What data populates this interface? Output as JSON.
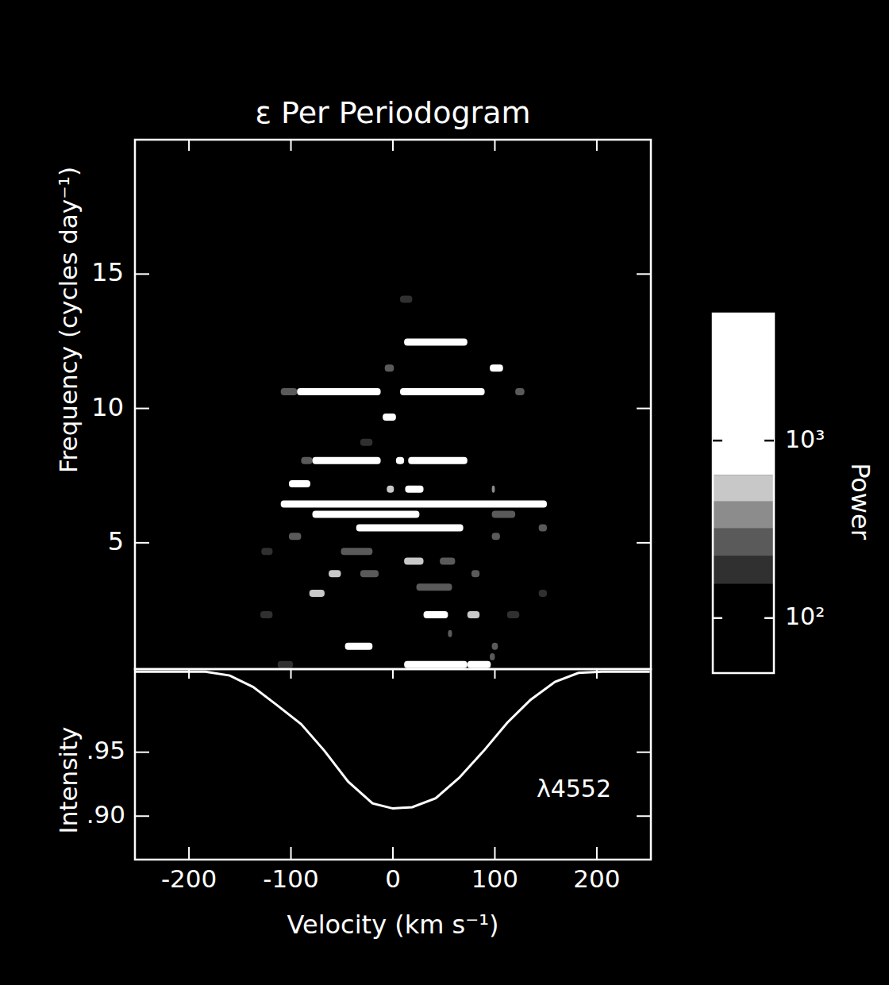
{
  "chart_data": [
    {
      "type": "heatmap",
      "title": "ε Per Periodogram",
      "ylabel": "Frequency (cycles day⁻¹)",
      "xlim": [
        -253,
        253
      ],
      "xticks": [
        -200,
        -100,
        0,
        100,
        200
      ],
      "ylim": [
        0.3,
        20
      ],
      "yticks": [
        5,
        10,
        15
      ],
      "tick_labels": "y",
      "cells": [
        [
          14.06,
          7,
          19,
          200
        ],
        [
          12.47,
          11,
          73,
          800
        ],
        [
          11.5,
          -8,
          1,
          250
        ],
        [
          11.5,
          95,
          108,
          1500
        ],
        [
          10.62,
          -110,
          -94,
          300
        ],
        [
          10.62,
          -94,
          -12,
          1500
        ],
        [
          10.62,
          7,
          90,
          2000
        ],
        [
          10.62,
          120,
          129,
          250
        ],
        [
          9.68,
          -10,
          3,
          1200
        ],
        [
          8.74,
          -32,
          -20,
          200
        ],
        [
          8.06,
          -90,
          -79,
          300
        ],
        [
          8.06,
          -79,
          -12,
          1500
        ],
        [
          8.06,
          3,
          11,
          1000
        ],
        [
          8.06,
          15,
          73,
          1500
        ],
        [
          7.2,
          -102,
          -81,
          800
        ],
        [
          7.0,
          -6,
          1,
          600
        ],
        [
          7.0,
          12,
          30,
          1200
        ],
        [
          7.0,
          97,
          100,
          400
        ],
        [
          6.44,
          -110,
          151,
          5000
        ],
        [
          6.06,
          -79,
          26,
          700
        ],
        [
          6.06,
          97,
          120,
          250
        ],
        [
          5.56,
          -36,
          69,
          1200
        ],
        [
          5.56,
          143,
          151,
          250
        ],
        [
          5.24,
          -102,
          -90,
          250
        ],
        [
          5.24,
          97,
          105,
          250
        ],
        [
          4.68,
          -51,
          -20,
          300
        ],
        [
          4.68,
          -129,
          -118,
          200
        ],
        [
          4.32,
          11,
          30,
          600
        ],
        [
          4.32,
          46,
          61,
          250
        ],
        [
          3.85,
          -63,
          -51,
          600
        ],
        [
          3.85,
          -32,
          -14,
          250
        ],
        [
          3.85,
          77,
          85,
          250
        ],
        [
          3.35,
          23,
          58,
          300
        ],
        [
          3.12,
          -82,
          -67,
          500
        ],
        [
          3.12,
          143,
          151,
          200
        ],
        [
          2.32,
          30,
          54,
          900
        ],
        [
          2.32,
          73,
          85,
          500
        ],
        [
          2.32,
          -130,
          -118,
          200
        ],
        [
          2.32,
          112,
          124,
          200
        ],
        [
          1.62,
          54,
          58,
          250
        ],
        [
          1.15,
          -47,
          -20,
          700
        ],
        [
          1.15,
          97,
          103,
          250
        ],
        [
          0.76,
          95,
          100,
          250
        ],
        [
          0.47,
          11,
          73,
          1200
        ],
        [
          0.47,
          73,
          96,
          900
        ],
        [
          0.47,
          -113,
          -98,
          200
        ]
      ],
      "colorbar": {
        "label": "Power",
        "log": true,
        "range": [
          49,
          5200
        ],
        "ticks": [
          {
            "value": 100,
            "label": "10²"
          },
          {
            "value": 1000,
            "label": "10³"
          }
        ],
        "levels": [
          156,
          224,
          320,
          454,
          640
        ],
        "colors": [
          "#000000",
          "#303030",
          "#5a5a5a",
          "#8c8c8c",
          "#c8c8c8",
          "#ffffff"
        ]
      }
    },
    {
      "type": "line",
      "xlabel": "Velocity (km s⁻¹)",
      "ylabel": "Intensity",
      "annotation": "λ4552",
      "color": "#ffffff",
      "xlim": [
        -253,
        253
      ],
      "xticks": [
        -200,
        -100,
        0,
        100,
        200
      ],
      "ylim": [
        0.866,
        1.015
      ],
      "yticks": [
        {
          "value": 0.9,
          "label": ".90"
        },
        {
          "value": 0.95,
          "label": ".95"
        }
      ],
      "x": [
        -253,
        -184,
        -160,
        -137,
        -114,
        -90,
        -67,
        -44,
        -20,
        0,
        19,
        42,
        65,
        89,
        112,
        135,
        159,
        182,
        205,
        252
      ],
      "values": [
        1.013,
        1.013,
        1.01,
        1.001,
        0.987,
        0.972,
        0.951,
        0.927,
        0.91,
        0.906,
        0.907,
        0.914,
        0.93,
        0.951,
        0.973,
        0.991,
        1.005,
        1.012,
        1.013,
        1.013
      ]
    }
  ]
}
